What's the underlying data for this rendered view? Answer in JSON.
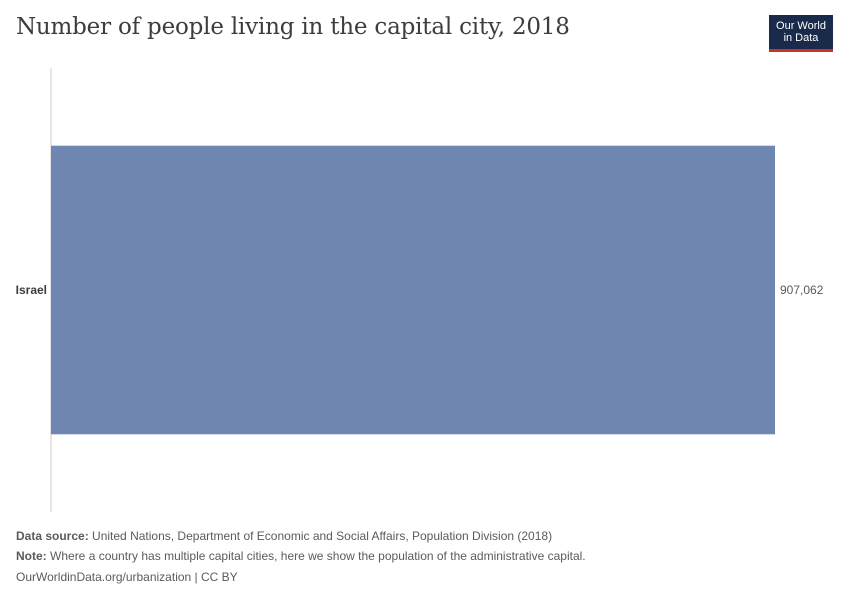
{
  "header": {
    "title": "Number of people living in the capital city, 2018",
    "logo_line1": "Our World",
    "logo_line2": "in Data"
  },
  "chart_data": {
    "type": "bar",
    "orientation": "horizontal",
    "categories": [
      "Israel"
    ],
    "values": [
      907062
    ],
    "value_labels": [
      "907,062"
    ],
    "xlim": [
      0,
      907062
    ],
    "grid": false,
    "bar_color": "#6f87b0"
  },
  "footer": {
    "source_label": "Data source:",
    "source_text": "United Nations, Department of Economic and Social Affairs, Population Division (2018)",
    "note_label": "Note:",
    "note_text": "Where a country has multiple capital cities, here we show the population of the administrative capital.",
    "url_text": "OurWorldinData.org/urbanization | CC BY"
  }
}
